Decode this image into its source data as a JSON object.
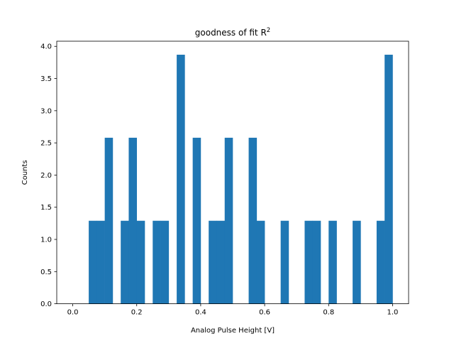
{
  "chart_data": {
    "type": "bar",
    "title": "goodness of fit R",
    "title_superscript": "2",
    "xlabel": "Analog Pulse Height [V]",
    "ylabel": "Counts",
    "xlim": [
      -0.05,
      1.05
    ],
    "ylim": [
      0,
      4.08
    ],
    "xticks": [
      "0.0",
      "0.2",
      "0.4",
      "0.6",
      "0.8",
      "1.0"
    ],
    "yticks": [
      "0.0",
      "0.5",
      "1.0",
      "1.5",
      "2.0",
      "2.5",
      "3.0",
      "3.5",
      "4.0"
    ],
    "bin_start": 0.0,
    "bin_width": 0.025,
    "values": [
      0,
      0,
      1.29,
      1.29,
      2.58,
      0,
      1.29,
      2.58,
      1.29,
      0,
      1.29,
      1.29,
      0,
      3.87,
      0,
      2.58,
      0,
      1.29,
      1.29,
      2.58,
      0,
      0,
      2.58,
      1.29,
      0,
      0,
      1.29,
      0,
      0,
      1.29,
      1.29,
      0,
      1.29,
      0,
      0,
      1.29,
      0,
      0,
      1.29,
      3.87
    ],
    "bar_color": "#1f77b4",
    "grid": false
  }
}
